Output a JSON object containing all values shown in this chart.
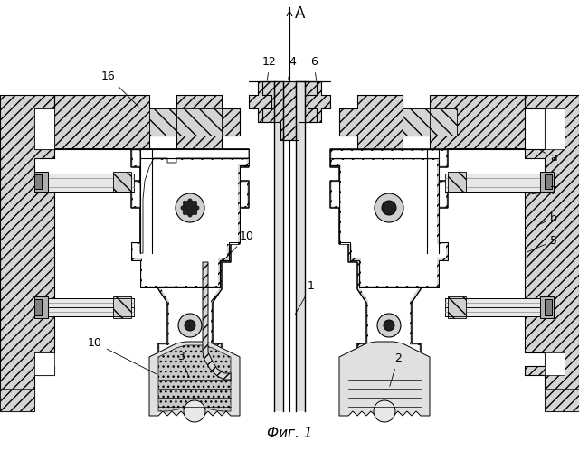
{
  "bg_color": "#ffffff",
  "line_color": "#000000",
  "fig_width": 6.4,
  "fig_height": 4.99,
  "title": "Фиг. 1",
  "axis_label": "A",
  "hatch_gray": "#d4d4d4",
  "white": "#ffffff",
  "dark_gray": "#555555",
  "mid_gray": "#888888",
  "light_gray": "#cccccc"
}
